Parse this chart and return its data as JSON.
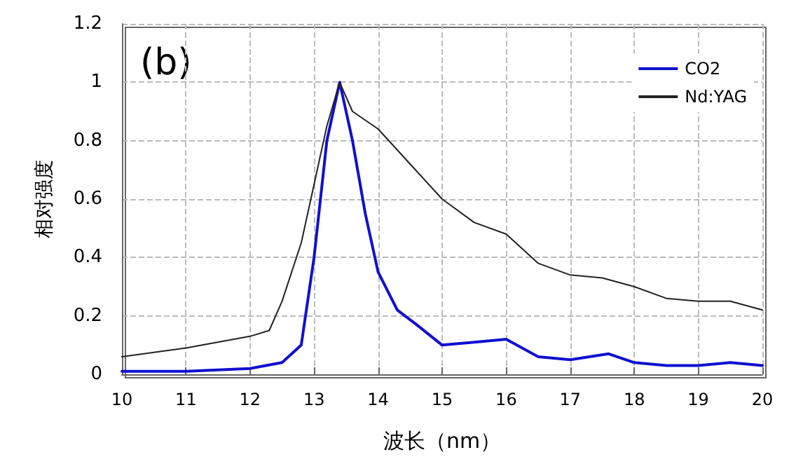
{
  "chart_data": {
    "type": "line",
    "xlabel": "波长（nm）",
    "ylabel": "相对强度",
    "annotations": [
      "(b)"
    ],
    "xlim": [
      10,
      20
    ],
    "xticks": [
      10,
      11,
      12,
      13,
      14,
      15,
      16,
      17,
      18,
      19,
      20
    ],
    "ylim": [
      0,
      1.2
    ],
    "yticks": [
      0,
      0.2,
      0.4,
      0.6,
      0.8,
      1,
      1.2
    ],
    "grid": true,
    "legend": "top right",
    "marker": "none",
    "series": [
      {
        "name": "CO2",
        "color": "#1010d0",
        "x": [
          10,
          11,
          12,
          12.5,
          12.8,
          13.0,
          13.2,
          13.4,
          13.6,
          13.8,
          14,
          14.3,
          14.6,
          15,
          15.5,
          16,
          16.5,
          17,
          17.6,
          18,
          18.5,
          19,
          19.5,
          20
        ],
        "values": [
          0.01,
          0.01,
          0.02,
          0.04,
          0.1,
          0.4,
          0.8,
          1.0,
          0.8,
          0.55,
          0.35,
          0.22,
          0.17,
          0.1,
          0.11,
          0.12,
          0.06,
          0.05,
          0.07,
          0.04,
          0.03,
          0.03,
          0.04,
          0.03
        ]
      },
      {
        "name": "Nd:YAG",
        "color": "#222222",
        "x": [
          10,
          11,
          12,
          12.3,
          12.5,
          12.8,
          13.0,
          13.2,
          13.4,
          13.6,
          14,
          14.5,
          15,
          15.5,
          16,
          16.5,
          17,
          17.5,
          18,
          18.5,
          19,
          19.5,
          20
        ],
        "values": [
          0.06,
          0.09,
          0.13,
          0.15,
          0.25,
          0.45,
          0.65,
          0.85,
          1.0,
          0.9,
          0.84,
          0.72,
          0.6,
          0.52,
          0.48,
          0.38,
          0.34,
          0.33,
          0.3,
          0.26,
          0.25,
          0.25,
          0.22
        ]
      }
    ]
  }
}
